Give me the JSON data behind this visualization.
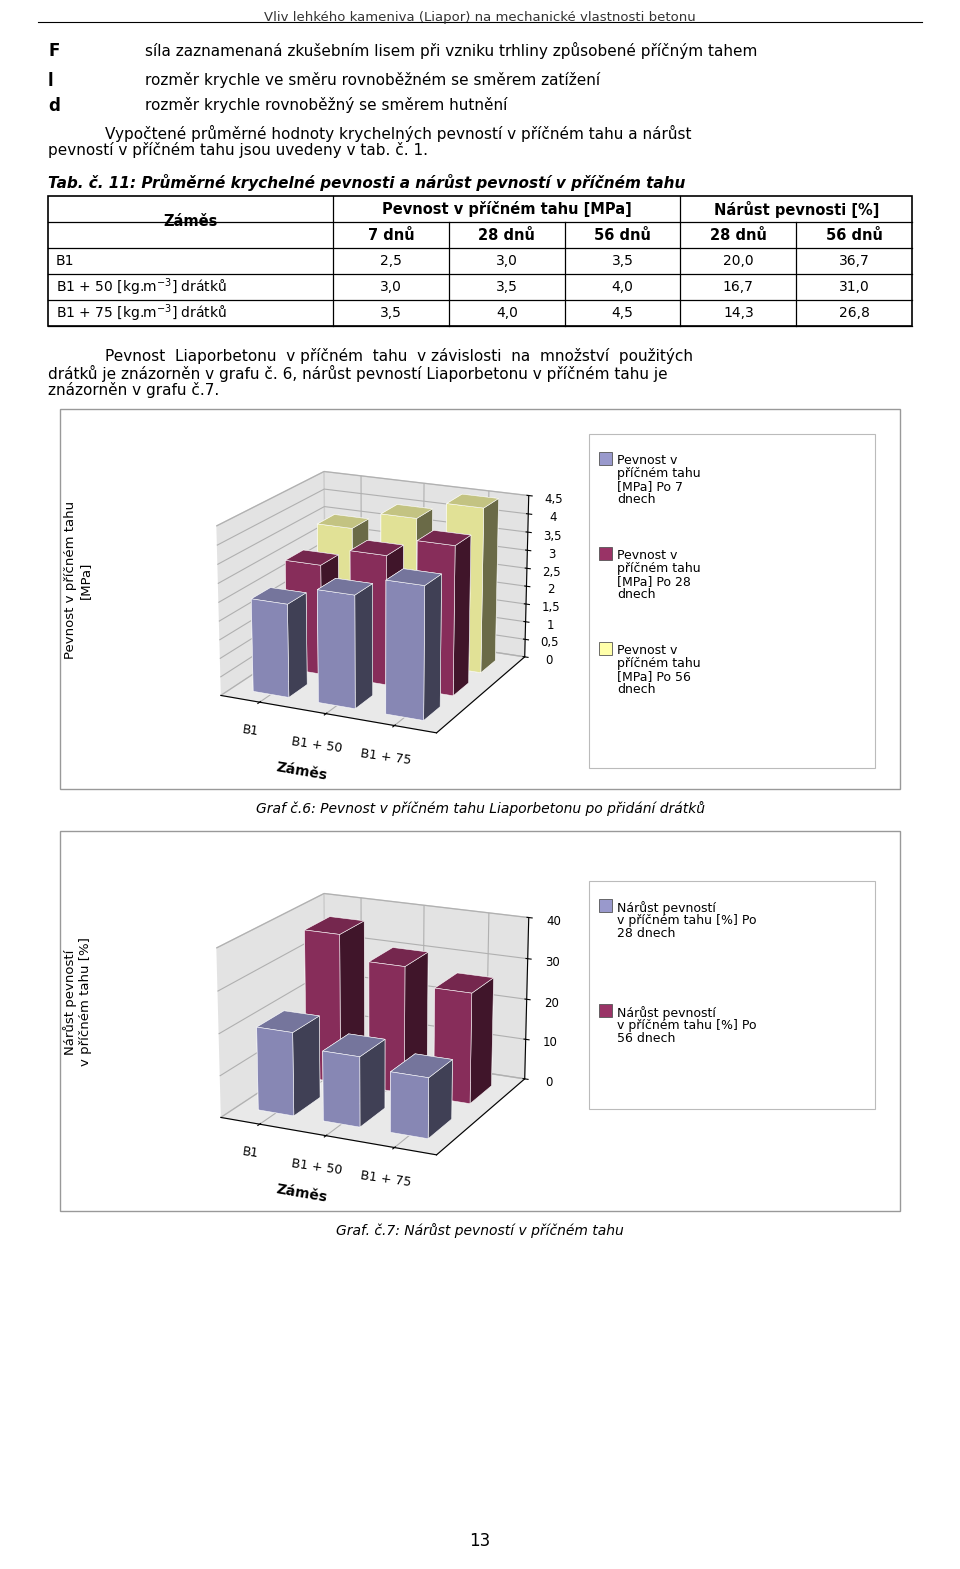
{
  "page_title": "Vliv lehkého kameniva (Liapor) na mechanické vlastnosti betonu",
  "page_number": "13",
  "table_title": "Tab. č. 11: Průměrné krychelné pevnosti a nárůst pevností v příčném tahu",
  "table_rows": [
    [
      "B1",
      "2,5",
      "3,0",
      "3,5",
      "20,0",
      "36,7"
    ],
    [
      "B1 + 50 [kg.m$^{-3}$] drátků",
      "3,0",
      "3,5",
      "4,0",
      "16,7",
      "31,0"
    ],
    [
      "B1 + 75 [kg.m$^{-3}$] drátků",
      "3,5",
      "4,0",
      "4,5",
      "14,3",
      "26,8"
    ]
  ],
  "chart1_title": "Graf č.6: Pevnost v příčném tahu Liaporbetonu po přidání drátků",
  "chart1_yticks": [
    0,
    0.5,
    1,
    1.5,
    2,
    2.5,
    3,
    3.5,
    4,
    4.5
  ],
  "chart1_ytick_labels": [
    "0",
    "0,5",
    "1",
    "1,5",
    "2",
    "2,5",
    "3",
    "3,5",
    "4",
    "4,5"
  ],
  "chart1_categories": [
    "B1",
    "B1 + 50",
    "B1 + 75"
  ],
  "chart1_series_vals": [
    [
      2.5,
      3.0,
      3.5
    ],
    [
      3.0,
      3.5,
      4.0
    ],
    [
      3.5,
      4.0,
      4.5
    ]
  ],
  "chart1_colors": [
    "#9999cc",
    "#993366",
    "#ffffaa"
  ],
  "chart1_legend": [
    "Pevnost v\npříčném tahu\n[MPa] Po 7\ndnech",
    "Pevnost v\npříčném tahu\n[MPa] Po 28\ndnech",
    "Pevnost v\npříčném tahu\n[MPa] Po 56\ndnech"
  ],
  "chart2_title": "Graf. č.7: Nárůst pevností v příčném tahu",
  "chart2_yticks": [
    0,
    10,
    20,
    30,
    40
  ],
  "chart2_ytick_labels": [
    "0",
    "10",
    "20",
    "30",
    "40"
  ],
  "chart2_categories": [
    "B1",
    "B1 + 50",
    "B1 + 75"
  ],
  "chart2_series_vals": [
    [
      20.0,
      16.7,
      14.3
    ],
    [
      36.7,
      31.0,
      26.8
    ]
  ],
  "chart2_colors": [
    "#9999cc",
    "#993366"
  ],
  "chart2_legend": [
    "Nárůst pevností\nv příčném tahu [%] Po\n28 dnech",
    "Nárůst pevností\nv příčném tahu [%] Po\n56 dnech"
  ],
  "bg_color": "#ffffff",
  "text_color": "#000000",
  "pane_color_side": "#c8c8c8",
  "pane_color_back": "#c8c8c8",
  "pane_color_floor": "#a8a8a8"
}
